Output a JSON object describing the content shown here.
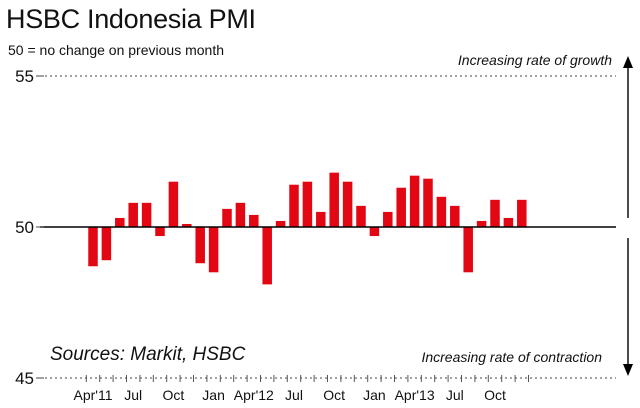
{
  "chart_data": {
    "type": "bar",
    "title": "HSBC Indonesia PMI",
    "subtitle": "50 = no change on previous month",
    "source": "Sources: Markit, HSBC",
    "note_top": "Increasing rate of growth",
    "note_bottom": "Increasing rate of contraction",
    "baseline": 50,
    "ylim": [
      45,
      55
    ],
    "yticks": [
      "55",
      "50",
      "45"
    ],
    "ytick_values": [
      55,
      50,
      45
    ],
    "bar_color": "#e30613",
    "grid": false,
    "categories": [
      "Apr'11",
      "May'11",
      "Jun'11",
      "Jul'11",
      "Aug'11",
      "Sep'11",
      "Oct'11",
      "Nov'11",
      "Dec'11",
      "Jan'12",
      "Feb'12",
      "Mar'12",
      "Apr'12",
      "May'12",
      "Jun'12",
      "Jul'12",
      "Aug'12",
      "Sep'12",
      "Oct'12",
      "Nov'12",
      "Dec'12",
      "Jan'13",
      "Feb'13",
      "Mar'13",
      "Apr'13",
      "May'13",
      "Jun'13",
      "Jul'13",
      "Aug'13",
      "Sep'13",
      "Oct'13",
      "Nov'13",
      "Dec'13"
    ],
    "values": [
      48.7,
      48.9,
      50.3,
      50.8,
      50.8,
      49.7,
      51.5,
      50.1,
      48.8,
      48.5,
      50.6,
      50.8,
      50.4,
      48.1,
      50.2,
      51.4,
      51.5,
      50.5,
      51.8,
      51.5,
      50.7,
      49.7,
      50.5,
      51.3,
      51.7,
      51.6,
      51.0,
      50.7,
      48.5,
      50.2,
      50.9,
      50.3,
      50.9
    ],
    "x_labels": [
      {
        "index": 0,
        "text": "Apr'11"
      },
      {
        "index": 3,
        "text": "Jul"
      },
      {
        "index": 6,
        "text": "Oct"
      },
      {
        "index": 9,
        "text": "Jan"
      },
      {
        "index": 12,
        "text": "Apr'12"
      },
      {
        "index": 15,
        "text": "Jul"
      },
      {
        "index": 18,
        "text": "Oct"
      },
      {
        "index": 21,
        "text": "Jan"
      },
      {
        "index": 24,
        "text": "Apr'13"
      },
      {
        "index": 27,
        "text": "Jul"
      },
      {
        "index": 30,
        "text": "Oct"
      }
    ]
  }
}
